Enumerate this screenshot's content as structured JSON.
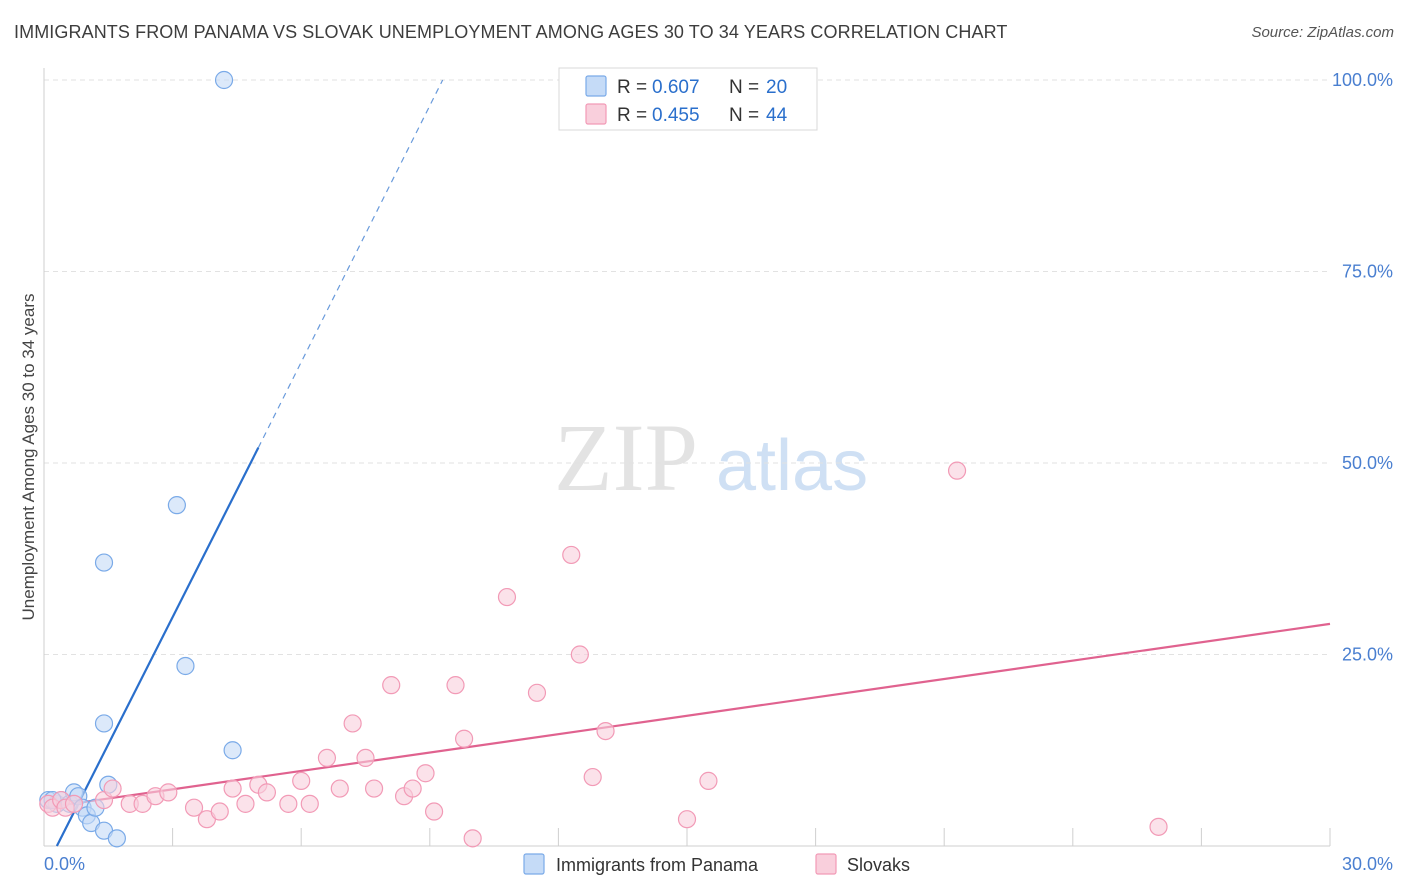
{
  "title": "IMMIGRANTS FROM PANAMA VS SLOVAK UNEMPLOYMENT AMONG AGES 30 TO 34 YEARS CORRELATION CHART",
  "source": "Source: ZipAtlas.com",
  "watermark": {
    "zip": "ZIP",
    "atlas": "atlas"
  },
  "chart_data": {
    "type": "scatter",
    "xlabel": "",
    "ylabel": "Unemployment Among Ages 30 to 34 years",
    "xlim": [
      0,
      30
    ],
    "ylim": [
      0,
      100
    ],
    "x_tick_labels": [
      "0.0%",
      "30.0%"
    ],
    "y_ticks": [
      25,
      50,
      75,
      100
    ],
    "y_tick_labels": [
      "25.0%",
      "50.0%",
      "75.0%",
      "100.0%"
    ],
    "grid": true,
    "legend_stats": [
      {
        "r_label": "R = ",
        "r": "0.607",
        "n_label": "N = ",
        "n": "20"
      },
      {
        "r_label": "R = ",
        "r": "0.455",
        "n_label": "N = ",
        "n": "44"
      }
    ],
    "series": [
      {
        "name": "Immigrants from Panama",
        "color": "#7aaae8",
        "fill": "#c5dbf7",
        "line_color": "#2a6fcc",
        "trend": {
          "x0": 0.3,
          "y0": 0,
          "x1": 5.0,
          "y1": 52,
          "dash_to_x": 9.3,
          "dash_to_y": 100
        },
        "points": [
          [
            0.1,
            6.0
          ],
          [
            0.3,
            5.5
          ],
          [
            0.4,
            6.0
          ],
          [
            0.6,
            5.5
          ],
          [
            0.7,
            7.0
          ],
          [
            0.8,
            6.5
          ],
          [
            0.9,
            5.0
          ],
          [
            1.0,
            4.0
          ],
          [
            1.1,
            3.0
          ],
          [
            1.2,
            5.0
          ],
          [
            1.4,
            2.0
          ],
          [
            1.5,
            8.0
          ],
          [
            1.7,
            1.0
          ],
          [
            1.4,
            16.0
          ],
          [
            1.4,
            37.0
          ],
          [
            3.1,
            44.5
          ],
          [
            3.3,
            23.5
          ],
          [
            4.4,
            12.5
          ],
          [
            4.2,
            100.0
          ],
          [
            0.2,
            6.0
          ]
        ]
      },
      {
        "name": "Slovaks",
        "color": "#f29ab6",
        "fill": "#f9cfdc",
        "line_color": "#e0628f",
        "trend": {
          "x0": 0,
          "y0": 5,
          "x1": 30,
          "y1": 29
        },
        "points": [
          [
            0.1,
            5.5
          ],
          [
            0.2,
            5.0
          ],
          [
            0.4,
            6.0
          ],
          [
            0.5,
            5.0
          ],
          [
            0.7,
            5.5
          ],
          [
            1.4,
            6.0
          ],
          [
            1.6,
            7.5
          ],
          [
            2.0,
            5.5
          ],
          [
            2.3,
            5.5
          ],
          [
            2.6,
            6.5
          ],
          [
            2.9,
            7.0
          ],
          [
            3.5,
            5.0
          ],
          [
            3.8,
            3.5
          ],
          [
            4.1,
            4.5
          ],
          [
            4.4,
            7.5
          ],
          [
            4.7,
            5.5
          ],
          [
            5.0,
            8.0
          ],
          [
            5.2,
            7.0
          ],
          [
            5.7,
            5.5
          ],
          [
            6.0,
            8.5
          ],
          [
            6.2,
            5.5
          ],
          [
            6.6,
            11.5
          ],
          [
            6.9,
            7.5
          ],
          [
            7.2,
            16.0
          ],
          [
            7.5,
            11.5
          ],
          [
            7.7,
            7.5
          ],
          [
            8.1,
            21.0
          ],
          [
            8.4,
            6.5
          ],
          [
            8.6,
            7.5
          ],
          [
            8.9,
            9.5
          ],
          [
            9.1,
            4.5
          ],
          [
            9.6,
            21.0
          ],
          [
            9.8,
            14.0
          ],
          [
            10.0,
            1.0
          ],
          [
            10.8,
            32.5
          ],
          [
            11.5,
            20.0
          ],
          [
            12.3,
            38.0
          ],
          [
            12.5,
            25.0
          ],
          [
            12.8,
            9.0
          ],
          [
            13.1,
            15.0
          ],
          [
            15.0,
            3.5
          ],
          [
            15.5,
            8.5
          ],
          [
            21.3,
            49.0
          ],
          [
            26.0,
            2.5
          ]
        ]
      }
    ]
  }
}
